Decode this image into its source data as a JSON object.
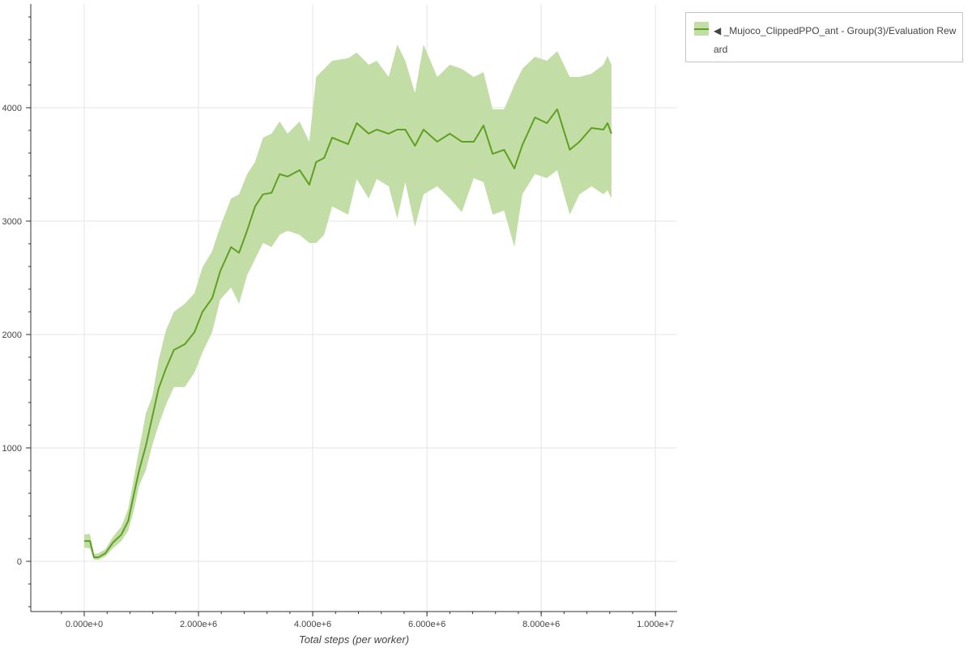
{
  "chart_data": {
    "type": "area",
    "title": "",
    "xlabel": "Total steps (per worker)",
    "ylabel": "",
    "xlim": [
      -936000,
      10380000
    ],
    "ylim": [
      -443,
      4914
    ],
    "grid": true,
    "legend_position": "top-right-outside",
    "x_ticks": [
      0,
      2000000,
      4000000,
      6000000,
      8000000,
      10000000
    ],
    "x_tick_labels": [
      "0.000e+0",
      "2.000e+6",
      "4.000e+6",
      "6.000e+6",
      "8.000e+6",
      "1.000e+7"
    ],
    "y_ticks": [
      0,
      1000,
      2000,
      3000,
      4000
    ],
    "y_tick_labels": [
      "0",
      "1000",
      "2000",
      "3000",
      "4000"
    ],
    "colors": {
      "line": "#5ea020",
      "band": "#c3dda7"
    },
    "series": [
      {
        "name": "◀ _Mujoco_ClippedPPO_ant - Group(3)/Evaluation Reward",
        "x": [
          0,
          100000,
          170000,
          250000,
          370000,
          500000,
          650000,
          770000,
          870000,
          960000,
          1080000,
          1190000,
          1300000,
          1430000,
          1570000,
          1760000,
          1930000,
          2070000,
          2240000,
          2380000,
          2570000,
          2710000,
          2850000,
          2990000,
          3130000,
          3280000,
          3420000,
          3560000,
          3770000,
          3940000,
          4060000,
          4200000,
          4340000,
          4620000,
          4770000,
          4980000,
          5120000,
          5330000,
          5480000,
          5620000,
          5790000,
          5940000,
          6180000,
          6400000,
          6610000,
          6820000,
          6990000,
          7150000,
          7350000,
          7530000,
          7670000,
          7890000,
          8100000,
          8280000,
          8500000,
          8670000,
          8880000,
          9090000,
          9160000,
          9230000
        ],
        "mean": [
          179,
          179,
          36,
          36,
          71,
          164,
          236,
          357,
          593,
          800,
          1021,
          1271,
          1521,
          1700,
          1864,
          1914,
          2021,
          2200,
          2321,
          2557,
          2771,
          2721,
          2914,
          3129,
          3236,
          3250,
          3414,
          3393,
          3450,
          3321,
          3521,
          3557,
          3736,
          3679,
          3864,
          3771,
          3807,
          3771,
          3807,
          3807,
          3664,
          3807,
          3700,
          3771,
          3700,
          3700,
          3843,
          3593,
          3629,
          3464,
          3671,
          3914,
          3864,
          3986,
          3629,
          3700,
          3821,
          3807,
          3864,
          3771
        ],
        "upper": [
          236,
          243,
          64,
          71,
          107,
          214,
          307,
          464,
          736,
          986,
          1307,
          1450,
          1771,
          2036,
          2200,
          2271,
          2364,
          2593,
          2736,
          2950,
          3200,
          3236,
          3414,
          3521,
          3736,
          3771,
          3879,
          3771,
          3879,
          3700,
          4271,
          4343,
          4414,
          4436,
          4486,
          4379,
          4414,
          4271,
          4557,
          4414,
          4129,
          4557,
          4271,
          4379,
          4343,
          4271,
          4314,
          3986,
          3986,
          4200,
          4343,
          4450,
          4414,
          4500,
          4271,
          4271,
          4300,
          4379,
          4457,
          4379
        ],
        "lower": [
          121,
          114,
          14,
          14,
          43,
          114,
          179,
          271,
          450,
          664,
          807,
          1021,
          1200,
          1379,
          1536,
          1536,
          1664,
          1843,
          2021,
          2307,
          2414,
          2271,
          2521,
          2664,
          2807,
          2771,
          2879,
          2914,
          2879,
          2807,
          2807,
          2879,
          3129,
          3057,
          3371,
          3200,
          3371,
          3307,
          3021,
          3343,
          2950,
          3236,
          3307,
          3200,
          3079,
          3379,
          3343,
          3057,
          3093,
          2771,
          3236,
          3414,
          3379,
          3450,
          3057,
          3236,
          3307,
          3236,
          3271,
          3200
        ]
      }
    ]
  }
}
